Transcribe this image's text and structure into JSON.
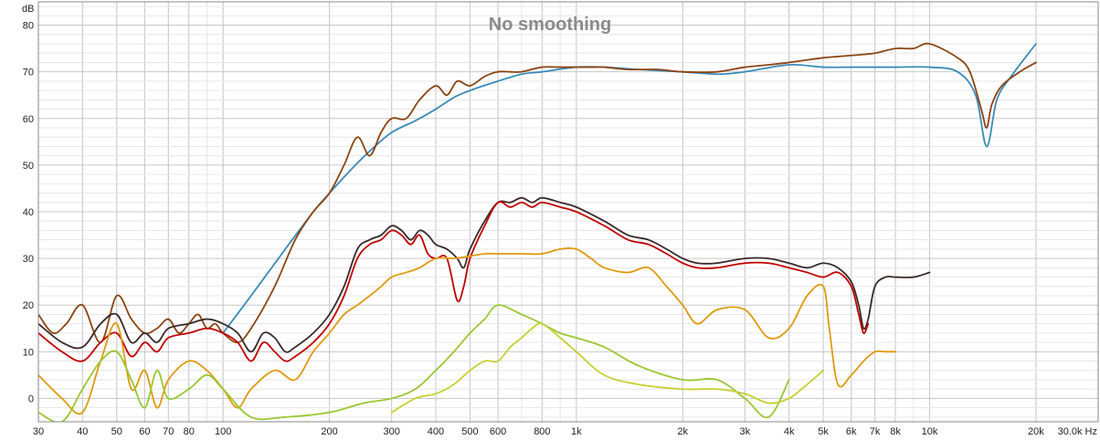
{
  "chart_data": {
    "type": "line",
    "title": "No smoothing",
    "ylabel": "dB",
    "xunit": "Hz",
    "xscale": "log",
    "xlim": [
      30,
      30000
    ],
    "ylim": [
      -5,
      85
    ],
    "grid": true,
    "x_tick_values": [
      30,
      40,
      50,
      60,
      70,
      80,
      100,
      200,
      300,
      400,
      500,
      600,
      800,
      1000,
      2000,
      3000,
      4000,
      5000,
      6000,
      7000,
      8000,
      10000,
      20000,
      30000
    ],
    "x_tick_labels": [
      "30",
      "40",
      "50",
      "60",
      "70",
      "80",
      "100",
      "200",
      "300",
      "400",
      "500",
      "600",
      "800",
      "1k",
      "2k",
      "3k",
      "4k",
      "5k",
      "6k",
      "7k",
      "8k",
      "10k",
      "20k",
      "30.0k Hz"
    ],
    "y_tick_values": [
      0,
      10,
      20,
      30,
      40,
      50,
      60,
      70,
      80
    ],
    "y_tick_labels": [
      "0",
      "10",
      "20",
      "30",
      "40",
      "50",
      "60",
      "70",
      "80"
    ],
    "series": [
      {
        "color": "#3b8bb8",
        "x": [
          100,
          120,
          150,
          180,
          200,
          230,
          260,
          300,
          350,
          400,
          450,
          500,
          600,
          700,
          800,
          1000,
          1200,
          1500,
          2000,
          2500,
          3000,
          4000,
          5000,
          6000,
          7000,
          8000,
          10000,
          12000,
          13500,
          14500,
          15500,
          17000,
          20000
        ],
        "y": [
          14,
          22,
          32,
          40,
          44,
          49,
          53,
          57,
          59.5,
          62,
          64.5,
          66,
          68,
          69.5,
          70,
          71,
          71,
          70.5,
          70,
          69.5,
          70,
          71.5,
          71,
          71,
          71,
          71,
          71,
          70,
          65,
          54,
          64,
          69,
          76
        ]
      },
      {
        "color": "#8b4513",
        "x": [
          30,
          33,
          36,
          40,
          45,
          50,
          55,
          60,
          65,
          70,
          75,
          80,
          85,
          90,
          95,
          100,
          110,
          120,
          140,
          160,
          180,
          200,
          220,
          240,
          260,
          280,
          300,
          330,
          360,
          400,
          430,
          460,
          500,
          550,
          600,
          650,
          700,
          800,
          900,
          1000,
          1100,
          1200,
          1400,
          1700,
          2000,
          2500,
          3000,
          3500,
          4000,
          5000,
          6000,
          7000,
          8000,
          9000,
          10000,
          12000,
          13000,
          14000,
          14500,
          15000,
          16000,
          18000,
          20000
        ],
        "y": [
          18,
          14,
          16,
          20,
          12,
          22,
          17,
          14,
          15,
          17,
          14,
          16,
          18,
          15,
          16,
          14,
          12,
          15,
          24,
          34,
          40,
          44,
          50,
          56,
          52,
          57,
          60,
          60,
          64,
          67,
          65,
          68,
          67,
          69,
          70,
          70,
          70,
          71,
          71,
          71,
          71,
          71,
          70.5,
          70.5,
          70,
          70,
          71,
          71.5,
          72,
          73,
          73.5,
          74,
          75,
          75,
          76,
          73,
          70,
          62,
          58,
          63,
          67,
          70,
          72
        ]
      },
      {
        "color": "#3a2a2a",
        "x": [
          30,
          35,
          40,
          45,
          50,
          55,
          60,
          65,
          70,
          80,
          90,
          100,
          110,
          120,
          130,
          140,
          150,
          160,
          180,
          200,
          220,
          240,
          260,
          280,
          300,
          320,
          340,
          360,
          380,
          400,
          430,
          460,
          480,
          500,
          550,
          600,
          650,
          700,
          750,
          800,
          900,
          1000,
          1200,
          1400,
          1600,
          1800,
          2000,
          2200,
          2500,
          3000,
          3500,
          4000,
          4500,
          5000,
          5500,
          6000,
          6300,
          6500,
          6700,
          7000,
          7500,
          8000,
          9000,
          10000
        ],
        "y": [
          16,
          12,
          11,
          16,
          18,
          12,
          14,
          12,
          15,
          16,
          17,
          16,
          14,
          10,
          14,
          13,
          10,
          11,
          14,
          18,
          24,
          32,
          34,
          35,
          37,
          36,
          34,
          36,
          35,
          33,
          32,
          30,
          28,
          32,
          38,
          42,
          42,
          43,
          42,
          43,
          42,
          41,
          38,
          35,
          34,
          32,
          30,
          29,
          29,
          30,
          30,
          29,
          28,
          29,
          28,
          25,
          20,
          15,
          17,
          24,
          26,
          26,
          26,
          27
        ]
      },
      {
        "color": "#c00000",
        "x": [
          30,
          35,
          40,
          45,
          50,
          55,
          60,
          65,
          70,
          80,
          90,
          100,
          110,
          120,
          130,
          140,
          150,
          160,
          180,
          200,
          220,
          240,
          260,
          280,
          300,
          320,
          340,
          360,
          380,
          400,
          430,
          460,
          480,
          500,
          550,
          600,
          650,
          700,
          750,
          800,
          900,
          1000,
          1200,
          1400,
          1600,
          1800,
          2000,
          2200,
          2500,
          3000,
          3500,
          4000,
          4500,
          5000,
          5500,
          6000,
          6300,
          6500,
          6700
        ],
        "y": [
          14,
          10,
          8,
          12,
          14,
          9,
          12,
          10,
          13,
          14,
          15,
          14,
          12,
          8,
          12,
          10,
          8,
          9,
          12,
          16,
          22,
          30,
          33,
          34,
          36,
          35,
          33,
          35,
          31,
          30,
          30,
          21,
          24,
          30,
          37,
          42,
          41,
          42,
          41,
          42,
          41,
          40,
          37,
          34,
          33,
          31,
          29,
          28,
          28,
          29,
          29,
          28,
          27,
          26,
          27,
          24,
          18,
          14,
          16
        ]
      },
      {
        "color": "#e09a10",
        "x": [
          30,
          35,
          40,
          45,
          50,
          55,
          60,
          65,
          70,
          80,
          90,
          100,
          110,
          120,
          140,
          160,
          180,
          200,
          220,
          240,
          260,
          280,
          300,
          330,
          360,
          400,
          450,
          500,
          550,
          600,
          700,
          800,
          900,
          1000,
          1100,
          1200,
          1400,
          1600,
          1800,
          2000,
          2200,
          2500,
          3000,
          3500,
          4000,
          4500,
          5000,
          5200,
          5500,
          6000,
          6500,
          7000,
          7500,
          8000
        ],
        "y": [
          5,
          0,
          -3,
          8,
          16,
          2,
          6,
          -2,
          4,
          8,
          6,
          2,
          -2,
          2,
          6,
          4,
          10,
          14,
          18,
          20,
          22,
          24,
          26,
          27,
          28,
          30,
          30,
          30.5,
          31,
          31,
          31,
          31,
          32,
          32,
          30,
          28,
          27,
          28,
          24,
          20,
          16,
          19,
          19,
          13,
          15,
          22,
          24,
          15,
          3,
          5,
          8,
          10,
          10,
          10
        ]
      },
      {
        "color": "#9ac830",
        "x": [
          30,
          35,
          40,
          45,
          50,
          55,
          60,
          65,
          70,
          80,
          90,
          100,
          120,
          150,
          200,
          250,
          300,
          350,
          400,
          450,
          500,
          550,
          600,
          700,
          800,
          900,
          1000,
          1200,
          1500,
          2000,
          2500,
          3000,
          3500,
          4000
        ],
        "y": [
          -3,
          -5,
          2,
          8,
          10,
          4,
          -2,
          6,
          0,
          2,
          5,
          2,
          -4,
          -4,
          -3,
          -1,
          0,
          2,
          6,
          10,
          14,
          17,
          20,
          18,
          16,
          14,
          13,
          11,
          7,
          4,
          4,
          0,
          -4,
          4
        ]
      },
      {
        "color": "#c8d030",
        "x": [
          300,
          350,
          400,
          450,
          500,
          550,
          600,
          650,
          700,
          750,
          800,
          900,
          1000,
          1200,
          1500,
          2000,
          2500,
          3000,
          3500,
          4000,
          4500,
          5000
        ],
        "y": [
          -3,
          0,
          1,
          3,
          6,
          8,
          8,
          11,
          13,
          15,
          16,
          13,
          10,
          5,
          3,
          2,
          2,
          1,
          -1,
          0,
          3,
          6
        ]
      }
    ]
  }
}
